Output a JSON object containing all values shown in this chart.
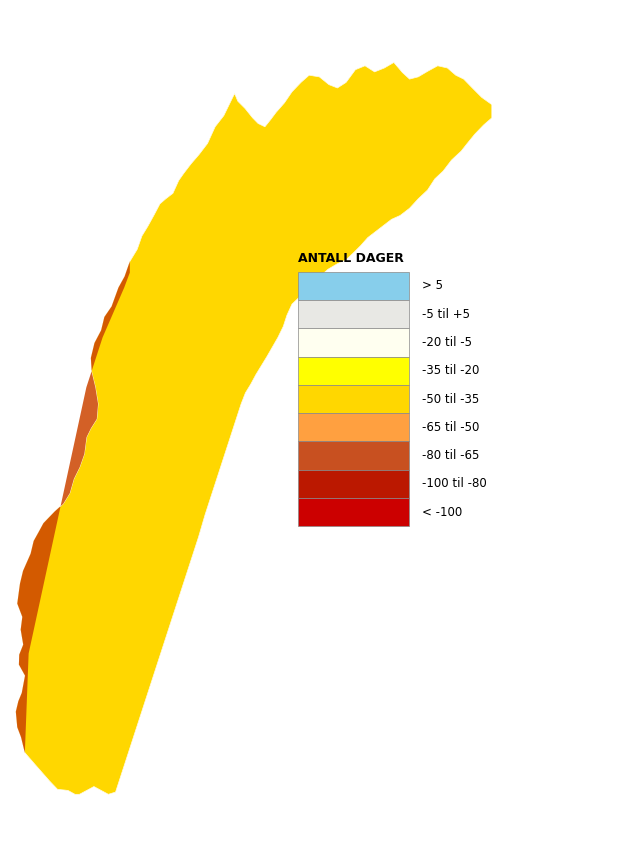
{
  "title": "ANTALL DAGER",
  "legend_colors": [
    "#87CEEB",
    "#E8E8E4",
    "#FFFFF0",
    "#FFFF00",
    "#FFD700",
    "#FFA040",
    "#C85020",
    "#BB1800",
    "#CC0000"
  ],
  "legend_labels": [
    "> 5",
    "-5 til +5",
    "-20 til -5",
    "-35 til -20",
    "-50 til -35",
    "-65 til -50",
    "-80 til -65",
    "-100 til -80",
    "< -100"
  ],
  "legend_title": "ANTALL DAGER",
  "background_color": "#FFFFFF",
  "fig_width": 6.2,
  "fig_height": 8.49,
  "dpi": 100,
  "legend_title_fontsize": 9,
  "legend_label_fontsize": 8.5
}
